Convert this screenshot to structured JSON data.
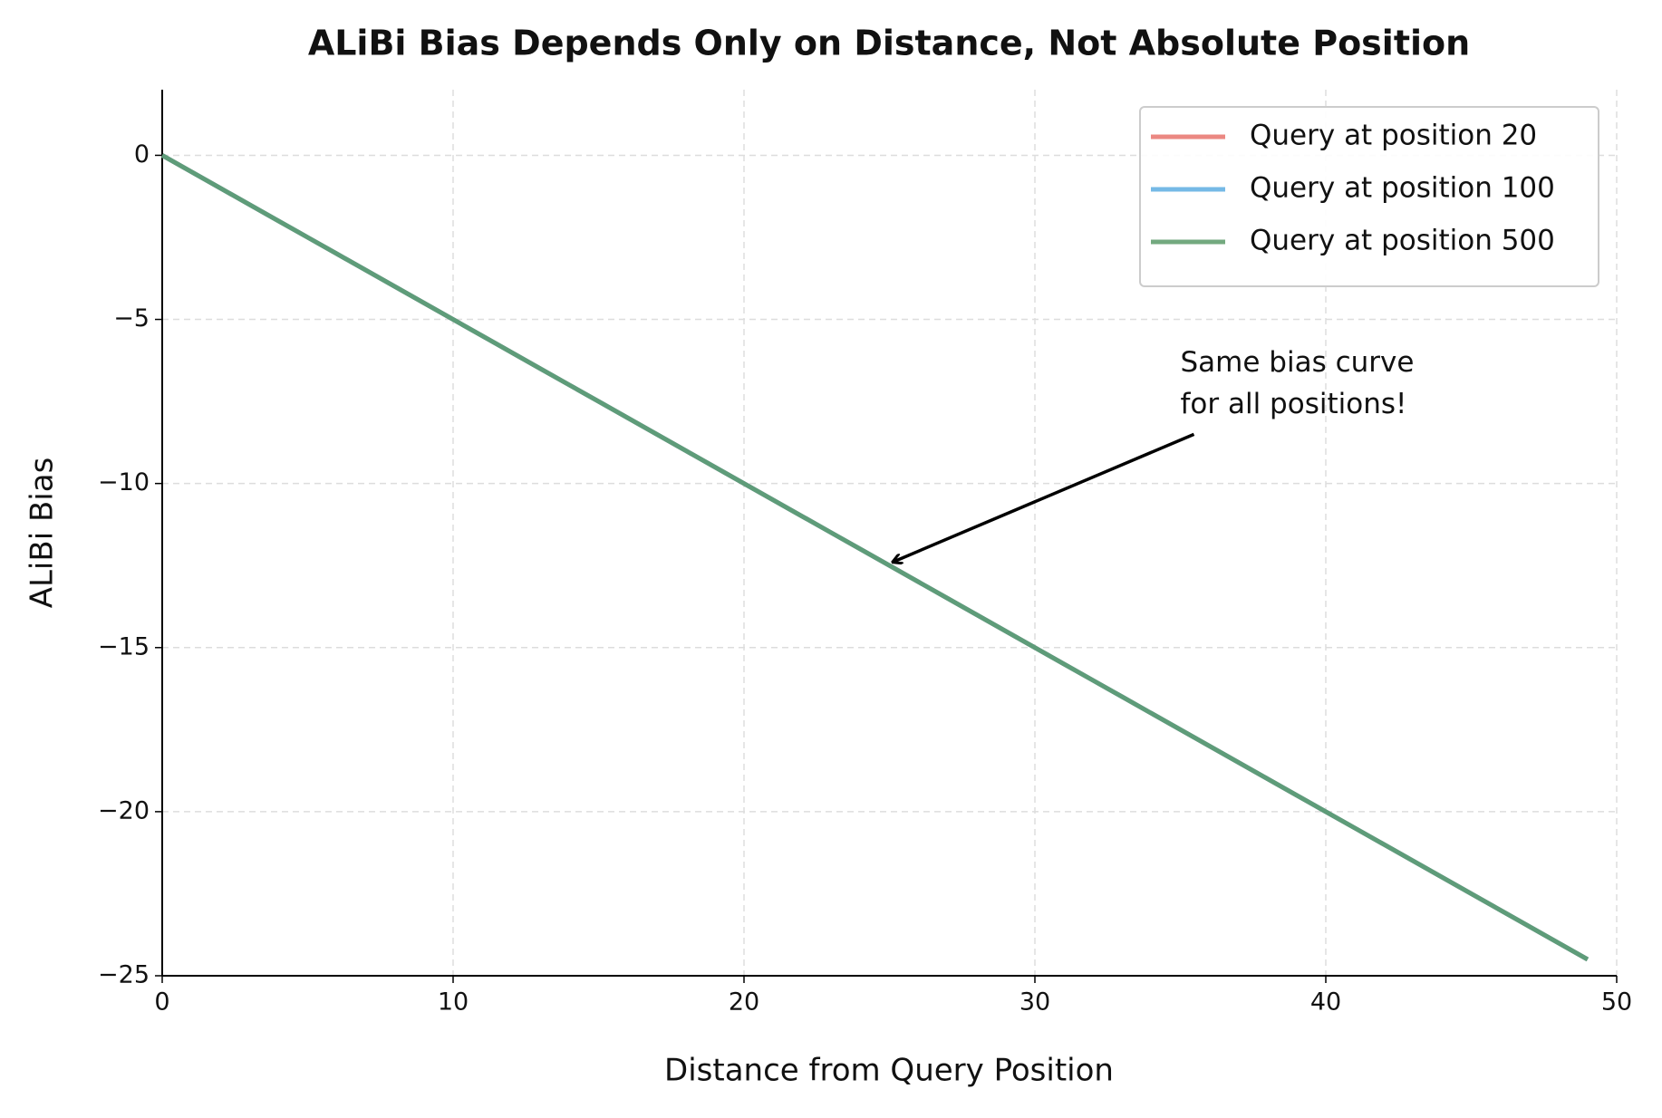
{
  "chart_data": {
    "type": "line",
    "title": "ALiBi Bias Depends Only on Distance, Not Absolute Position",
    "xlabel": "Distance from Query Position",
    "ylabel": "ALiBi Bias",
    "x": [
      0,
      1,
      2,
      3,
      4,
      5,
      6,
      7,
      8,
      9,
      10,
      11,
      12,
      13,
      14,
      15,
      16,
      17,
      18,
      19,
      20,
      21,
      22,
      23,
      24,
      25,
      26,
      27,
      28,
      29,
      30,
      31,
      32,
      33,
      34,
      35,
      36,
      37,
      38,
      39,
      40,
      41,
      42,
      43,
      44,
      45,
      46,
      47,
      48,
      49
    ],
    "series": [
      {
        "name": "Query at position 20",
        "color": "#e8736c",
        "values": [
          0,
          -0.5,
          -1,
          -1.5,
          -2,
          -2.5,
          -3,
          -3.5,
          -4,
          -4.5,
          -5,
          -5.5,
          -6,
          -6.5,
          -7,
          -7.5,
          -8,
          -8.5,
          -9,
          -9.5,
          -10,
          -10.5,
          -11,
          -11.5,
          -12,
          -12.5,
          -13,
          -13.5,
          -14,
          -14.5,
          -15,
          -15.5,
          -16,
          -16.5,
          -17,
          -17.5,
          -18,
          -18.5,
          -19,
          -19.5,
          -20,
          -20.5,
          -21,
          -21.5,
          -22,
          -22.5,
          -23,
          -23.5,
          -24,
          -24.5
        ]
      },
      {
        "name": "Query at position 100",
        "color": "#5dade2",
        "values": [
          0,
          -0.5,
          -1,
          -1.5,
          -2,
          -2.5,
          -3,
          -3.5,
          -4,
          -4.5,
          -5,
          -5.5,
          -6,
          -6.5,
          -7,
          -7.5,
          -8,
          -8.5,
          -9,
          -9.5,
          -10,
          -10.5,
          -11,
          -11.5,
          -12,
          -12.5,
          -13,
          -13.5,
          -14,
          -14.5,
          -15,
          -15.5,
          -16,
          -16.5,
          -17,
          -17.5,
          -18,
          -18.5,
          -19,
          -19.5,
          -20,
          -20.5,
          -21,
          -21.5,
          -22,
          -22.5,
          -23,
          -23.5,
          -24,
          -24.5
        ]
      },
      {
        "name": "Query at position 500",
        "color": "#5a9a68",
        "values": [
          0,
          -0.5,
          -1,
          -1.5,
          -2,
          -2.5,
          -3,
          -3.5,
          -4,
          -4.5,
          -5,
          -5.5,
          -6,
          -6.5,
          -7,
          -7.5,
          -8,
          -8.5,
          -9,
          -9.5,
          -10,
          -10.5,
          -11,
          -11.5,
          -12,
          -12.5,
          -13,
          -13.5,
          -14,
          -14.5,
          -15,
          -15.5,
          -16,
          -16.5,
          -17,
          -17.5,
          -18,
          -18.5,
          -19,
          -19.5,
          -20,
          -20.5,
          -21,
          -21.5,
          -22,
          -22.5,
          -23,
          -23.5,
          -24,
          -24.5
        ]
      }
    ],
    "xlim": [
      0,
      50
    ],
    "xticks": [
      0,
      10,
      20,
      30,
      40,
      50
    ],
    "ylim": [
      -25,
      2
    ],
    "yticks": [
      {
        "value": -25,
        "label": "−25"
      },
      {
        "value": -20,
        "label": "−20"
      },
      {
        "value": -15,
        "label": "−15"
      },
      {
        "value": -10,
        "label": "−10"
      },
      {
        "value": -5,
        "label": "−5"
      },
      0
    ],
    "grid": true,
    "legend": "upper right",
    "annotation": {
      "text": [
        "Same bias curve",
        "for all positions!"
      ],
      "xy": [
        25,
        -12.5
      ],
      "xytext": [
        35,
        -8.5
      ]
    }
  }
}
